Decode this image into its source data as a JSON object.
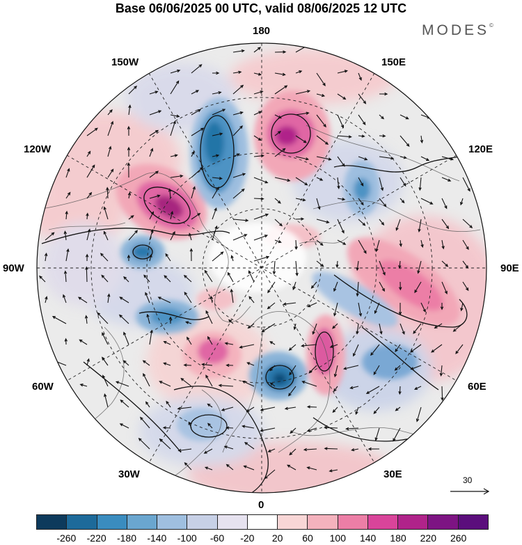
{
  "header": {
    "title": "Base 06/06/2025 00 UTC, valid 08/06/2025 12 UTC",
    "brand": "MODES",
    "brand_mark": "©"
  },
  "map": {
    "projection": "north polar stereographic",
    "longitude_labels": {
      "top": "180",
      "top_left": "150W",
      "top_right": "150E",
      "upper_left": "120W",
      "upper_right": "120E",
      "left": "90W",
      "right": "90E",
      "lower_left": "60W",
      "lower_right": "60E",
      "bottom_left": "30W",
      "bottom_right": "30E",
      "bottom": "0"
    },
    "anomaly_centers": [
      {
        "sign": "positive",
        "value": 240,
        "location": "Alaska / 120W-150W"
      },
      {
        "sign": "negative",
        "value": -200,
        "location": "Bering Sea / 165W"
      },
      {
        "sign": "positive",
        "value": 220,
        "location": "East Siberian Sea / 165E"
      },
      {
        "sign": "positive",
        "value": 160,
        "location": "Western Siberia / 75E"
      },
      {
        "sign": "positive",
        "value": 180,
        "location": "Barents Sea / 40E"
      },
      {
        "sign": "negative",
        "value": -200,
        "location": "Norwegian Sea / 5E"
      },
      {
        "sign": "positive",
        "value": 160,
        "location": "Greenland Sea / 30W"
      },
      {
        "sign": "negative",
        "value": -180,
        "location": "Hudson Bay / 75W"
      },
      {
        "sign": "negative",
        "value": -180,
        "location": "Canadian Arctic / 90W"
      },
      {
        "sign": "negative",
        "value": -140,
        "location": "Central Siberia / 60E"
      },
      {
        "sign": "negative",
        "value": -100,
        "location": "Central Asia / 45N 40W"
      }
    ]
  },
  "colorbar": {
    "ticks": [
      "-260",
      "-220",
      "-180",
      "-140",
      "-100",
      "-60",
      "-20",
      "20",
      "60",
      "100",
      "140",
      "180",
      "220",
      "260"
    ],
    "colors": [
      "#0d3a5c",
      "#1d6a9a",
      "#3a8cbf",
      "#6aa6cf",
      "#9fbfe0",
      "#c7d0e6",
      "#e6e2ef",
      "#ffffff",
      "#f8d6d6",
      "#f4b2bd",
      "#ec7ea6",
      "#d9449a",
      "#b0238a",
      "#7d1483",
      "#5b0e7c"
    ]
  },
  "vector_reference": {
    "value": "30"
  }
}
